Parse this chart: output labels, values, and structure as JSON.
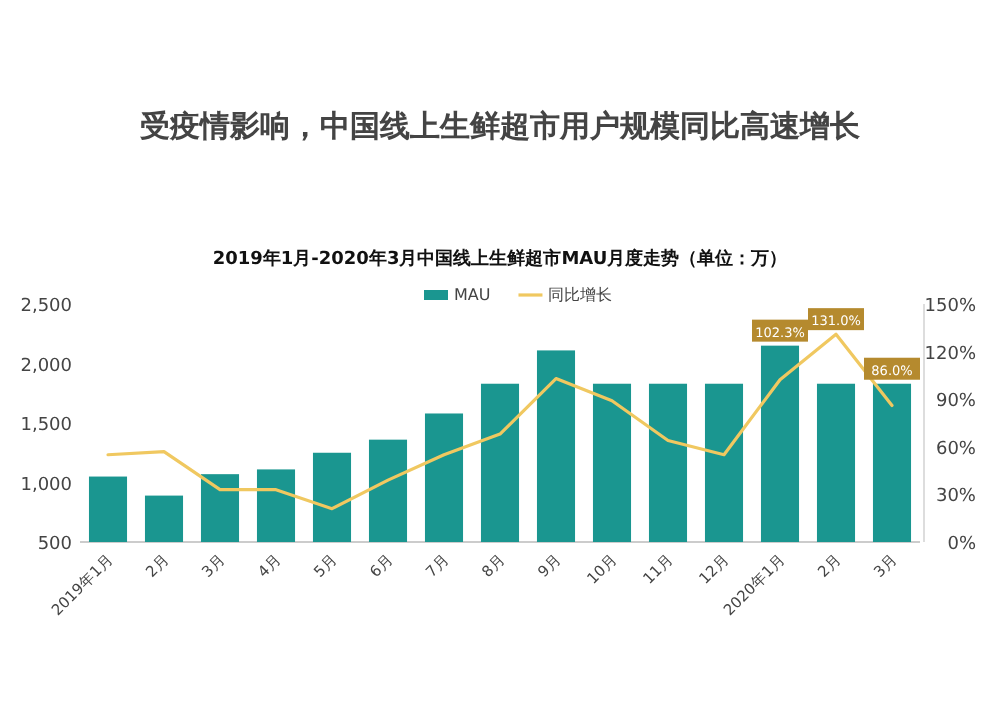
{
  "chart_data": {
    "type": "bar",
    "title": "受疫情影响，中国线上生鲜超市用户规模同比高速增长",
    "subtitle": "2019年1月-2020年3月中国线上生鲜超市MAU月度走势（单位：万）",
    "categories": [
      "2019年1月",
      "2月",
      "3月",
      "4月",
      "5月",
      "6月",
      "7月",
      "8月",
      "9月",
      "10月",
      "11月",
      "12月",
      "2020年1月",
      "2月",
      "3月"
    ],
    "series": [
      {
        "name": "MAU",
        "color": "#1a9690",
        "values": [
          1050,
          890,
          1070,
          1110,
          1250,
          1360,
          1580,
          1830,
          2110,
          1830,
          1830,
          1830,
          2150,
          1830,
          1830
        ]
      },
      {
        "name": "同比增长",
        "type": "line",
        "axis": "y2",
        "color": "#f0c860",
        "values": [
          55,
          57,
          33,
          33,
          21,
          39,
          55,
          68,
          103,
          89,
          64,
          55,
          102.3,
          131.0,
          86.0
        ],
        "value_labels": [
          null,
          null,
          null,
          null,
          null,
          null,
          null,
          null,
          null,
          null,
          null,
          null,
          "102.3%",
          "131.0%",
          "86.0%"
        ]
      }
    ],
    "ylim": [
      500,
      2500
    ],
    "yticks": [
      {
        "value": 500,
        "label": "500"
      },
      {
        "value": 1000,
        "label": "1,000"
      },
      {
        "value": 1500,
        "label": "1,500"
      },
      {
        "value": 2000,
        "label": "2,000"
      },
      {
        "value": 2500,
        "label": "2,500"
      }
    ],
    "y2lim": [
      0,
      150
    ],
    "y2ticks": [
      {
        "value": 0,
        "label": "0%"
      },
      {
        "value": 30,
        "label": "30%"
      },
      {
        "value": 60,
        "label": "60%"
      },
      {
        "value": 90,
        "label": "90%"
      },
      {
        "value": 120,
        "label": "120%"
      },
      {
        "value": 150,
        "label": "150%"
      }
    ],
    "legend": "top"
  }
}
